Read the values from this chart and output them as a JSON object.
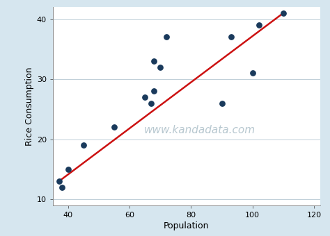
{
  "x_data": [
    37,
    38,
    40,
    45,
    55,
    65,
    67,
    68,
    68,
    70,
    72,
    90,
    93,
    100,
    102,
    110
  ],
  "y_data": [
    13,
    12,
    15,
    19,
    22,
    27,
    26,
    33,
    28,
    32,
    37,
    26,
    37,
    31,
    39,
    41
  ],
  "scatter_color": "#1a3a5c",
  "line_color": "#cc1111",
  "line_x": [
    37,
    110
  ],
  "line_y": [
    13.0,
    41.0
  ],
  "xlabel": "Population",
  "ylabel": "Rice Consumption",
  "xlim": [
    35,
    122
  ],
  "ylim": [
    9,
    42
  ],
  "xticks": [
    40,
    60,
    80,
    100,
    120
  ],
  "yticks": [
    10,
    20,
    30,
    40
  ],
  "bg_color": "#d6e6ef",
  "plot_bg_color": "#ffffff",
  "watermark": "www.kandadata.com",
  "watermark_color": "#b8c8d0",
  "scatter_size": 28,
  "marker": "o",
  "tick_labelsize": 8,
  "xlabel_size": 9,
  "ylabel_size": 9,
  "watermark_fontsize": 11
}
